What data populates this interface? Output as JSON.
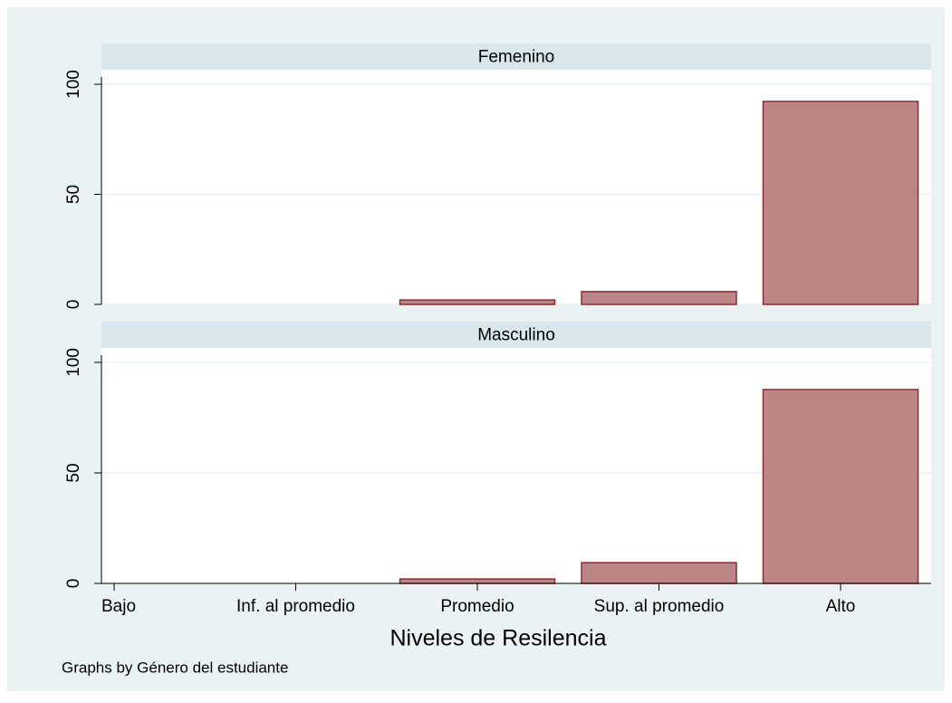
{
  "chart_data": {
    "type": "bar",
    "categories": [
      "Bajo",
      "Inf. al promedio",
      "Promedio",
      "Sup. al promedio",
      "Alto"
    ],
    "panels": [
      {
        "title": "Femenino",
        "values": [
          0,
          0,
          2,
          5.8,
          92.2
        ]
      },
      {
        "title": "Masculino",
        "values": [
          0,
          0,
          2,
          9.4,
          87.7
        ]
      }
    ],
    "color": "#bc8687",
    "ylim": [
      0,
      100
    ],
    "yticks": [
      0,
      50,
      100
    ],
    "grid": true,
    "xlabel": "Niveles de Resilencia",
    "note": "Graphs by Género del estudiante"
  }
}
